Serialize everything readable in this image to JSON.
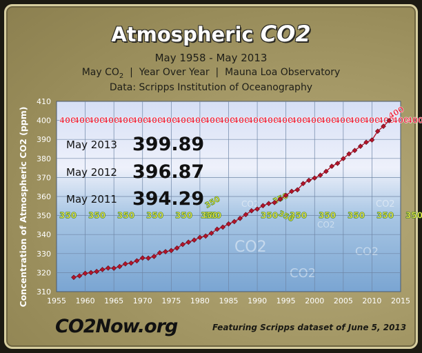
{
  "header": {
    "title_text": "Atmospheric ",
    "title_co2": "CO2",
    "period": "May 1958 - May 2013",
    "info_co": "May CO",
    "info_sub": "2",
    "info_rest": "  |  Year Over Year  |  Mauna Loa Observatory",
    "source": "Data:  Scripps Institution of Oceanography"
  },
  "footer": {
    "logo": "CO2Now.org",
    "note": "Featuring Scripps dataset of June 5, 2013"
  },
  "chart_data": {
    "type": "line",
    "ylabel": "Concentration of  Atmospheric CO2  (ppm)",
    "xlim": [
      1955,
      2015
    ],
    "ylim": [
      310,
      410
    ],
    "xticks": [
      1955,
      1960,
      1965,
      1970,
      1975,
      1980,
      1985,
      1990,
      1995,
      2000,
      2005,
      2010,
      2015
    ],
    "yticks": [
      310,
      320,
      330,
      340,
      350,
      360,
      370,
      380,
      390,
      400,
      410
    ],
    "grid": true,
    "series": [
      {
        "x": [
          1958,
          1959,
          1960,
          1961,
          1962,
          1963,
          1964,
          1965,
          1966,
          1967,
          1968,
          1969,
          1970,
          1971,
          1972,
          1973,
          1974,
          1975,
          1976,
          1977,
          1978,
          1979,
          1980,
          1981,
          1982,
          1983,
          1984,
          1985,
          1986,
          1987,
          1988,
          1989,
          1990,
          1991,
          1992,
          1993,
          1994,
          1995,
          1996,
          1997,
          1998,
          1999,
          2000,
          2001,
          2002,
          2003,
          2004,
          2005,
          2006,
          2007,
          2008,
          2009,
          2010,
          2011,
          2012,
          2013
        ],
        "y": [
          317.5,
          318.3,
          319.6,
          320.0,
          320.6,
          321.6,
          322.4,
          322.3,
          323.2,
          324.6,
          325.0,
          326.2,
          327.7,
          327.6,
          328.5,
          330.4,
          331.0,
          331.6,
          332.9,
          334.8,
          336.0,
          337.1,
          338.5,
          339.2,
          340.7,
          342.8,
          343.9,
          345.6,
          346.8,
          348.5,
          350.5,
          352.5,
          353.4,
          355.2,
          356.3,
          356.8,
          358.6,
          360.6,
          362.7,
          363.5,
          366.8,
          368.5,
          369.7,
          371.2,
          373.2,
          375.9,
          377.4,
          379.9,
          382.4,
          384.2,
          386.4,
          388.5,
          389.7,
          394.3,
          396.9,
          399.9
        ],
        "color": "#b4142a"
      }
    ],
    "band_400_labels": [
      "400",
      "400",
      "400",
      "400",
      "400",
      "400",
      "400",
      "400",
      "400",
      "400",
      "400",
      "400",
      "400",
      "400",
      "400",
      "400",
      "400",
      "400",
      "400",
      "400",
      "400",
      "400",
      "400",
      "400",
      "400"
    ],
    "band_400_end": "400",
    "band_350_labels": [
      "350",
      "350",
      "350",
      "350",
      "350",
      "350",
      "350",
      "350",
      "350",
      "350",
      "350",
      "350",
      "350"
    ],
    "band_350_crossings": [
      "350",
      "350",
      "350"
    ],
    "callouts": [
      {
        "label": "May 2013",
        "value": "399.89"
      },
      {
        "label": "May 2012",
        "value": "396.87"
      },
      {
        "label": "May 2011",
        "value": "394.29"
      }
    ],
    "watermark": [
      "CO2",
      "CO2",
      "CO2",
      "CO2",
      "CO2",
      "CO2"
    ]
  }
}
